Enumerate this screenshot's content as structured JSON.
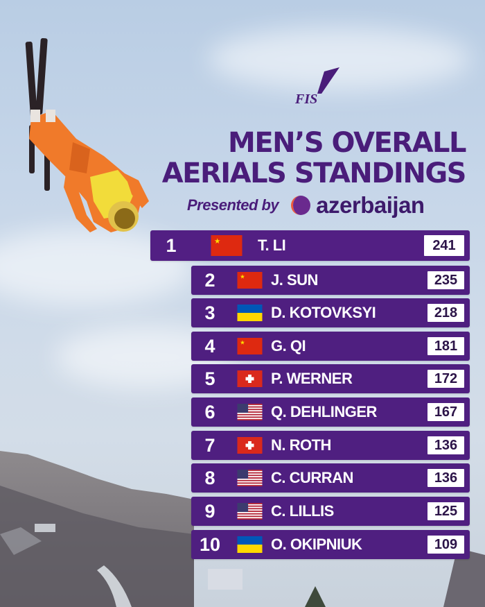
{
  "brand": {
    "fis_logo": "FIS",
    "title_line1": "MEN’S OVERALL",
    "title_line2": "AERIALS STANDINGS",
    "presented_by": "Presented by",
    "sponsor": "azerbaijan",
    "sponsor_icon": "azerbaijan-logo-icon",
    "accent_color": "#4f1f80"
  },
  "standings": [
    {
      "rank": "1",
      "name": "T. LI",
      "points": "241",
      "flag": "china-flag-icon"
    },
    {
      "rank": "2",
      "name": "J. SUN",
      "points": "235",
      "flag": "china-flag-icon"
    },
    {
      "rank": "3",
      "name": "D. KOTOVKSYI",
      "points": "218",
      "flag": "ukraine-flag-icon"
    },
    {
      "rank": "4",
      "name": "G. QI",
      "points": "181",
      "flag": "china-flag-icon"
    },
    {
      "rank": "5",
      "name": "P. WERNER",
      "points": "172",
      "flag": "switzerland-flag-icon"
    },
    {
      "rank": "6",
      "name": "Q. DEHLINGER",
      "points": "167",
      "flag": "usa-flag-icon"
    },
    {
      "rank": "7",
      "name": "N. ROTH",
      "points": "136",
      "flag": "switzerland-flag-icon"
    },
    {
      "rank": "8",
      "name": "C. CURRAN",
      "points": "136",
      "flag": "usa-flag-icon"
    },
    {
      "rank": "9",
      "name": "C. LILLIS",
      "points": "125",
      "flag": "usa-flag-icon"
    },
    {
      "rank": "10",
      "name": "O. OKIPNIUK",
      "points": "109",
      "flag": "ukraine-flag-icon"
    }
  ]
}
